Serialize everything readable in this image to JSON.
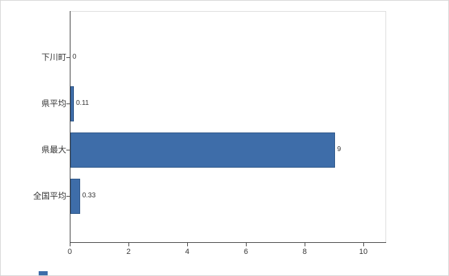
{
  "chart_data": {
    "type": "bar",
    "orientation": "horizontal",
    "title": "",
    "xlabel": "",
    "ylabel": "",
    "categories": [
      "下川町",
      "県平均",
      "県最大",
      "全国平均"
    ],
    "values": [
      0,
      0.11,
      9,
      0.33
    ],
    "value_labels": [
      "0",
      "0.11",
      "9",
      "0.33"
    ],
    "xlim": [
      0,
      10
    ],
    "xticks": [
      0,
      2,
      4,
      6,
      8,
      10
    ],
    "xtick_labels": [
      "0",
      "2",
      "4",
      "6",
      "8",
      "10"
    ],
    "grid": false,
    "legend": false,
    "bar_color": "#3E6DA9",
    "bar_border_color": "#2E5687",
    "axis_color": "#404040",
    "plot_border_color": "#dddddd",
    "background_color": "#ffffff"
  },
  "decorations": {
    "corner_mark_color": "#3E6DA9"
  }
}
